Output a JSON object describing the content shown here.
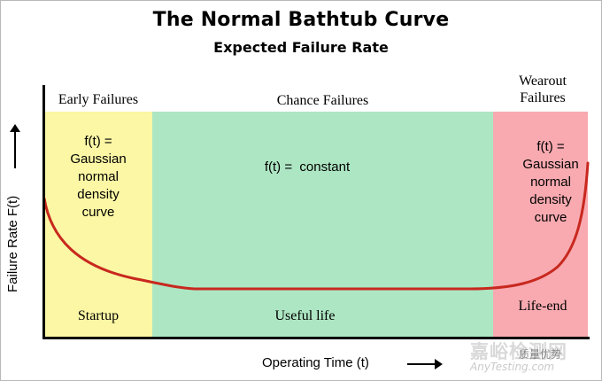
{
  "title": "The Normal Bathtub Curve",
  "subtitle": "Expected Failure Rate",
  "y_axis_label": "Failure Rate F(t)",
  "x_axis_label": "Operating Time (t)",
  "zones": [
    {
      "header": "Early Failures",
      "formula_lines": [
        "f(t) =",
        "Gaussian",
        "normal",
        "density",
        "curve"
      ],
      "phase": "Startup",
      "color": "#fbf7a4"
    },
    {
      "header": "Chance Failures",
      "formula_lines": [
        "f(t) =  constant"
      ],
      "phase": "Useful life",
      "color": "#ade6c3"
    },
    {
      "header_lines": [
        "Wearout",
        "Failures"
      ],
      "formula_lines": [
        "f(t) =",
        "Gaussian",
        "normal",
        "density",
        "curve"
      ],
      "phase": "Life-end",
      "color": "#f8aab0"
    }
  ],
  "curve_color": "#c8281e",
  "watermark": {
    "line1": "嘉峪检测网",
    "line2": "AnyTesting.com",
    "line3": "质量优势"
  }
}
